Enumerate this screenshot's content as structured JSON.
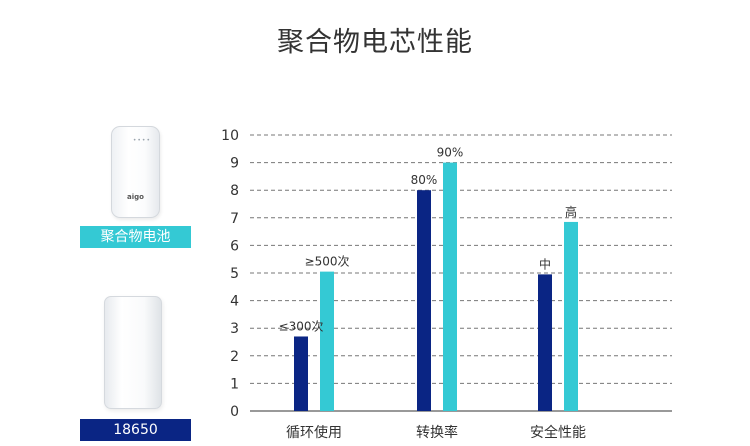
{
  "page": {
    "title": "聚合物电芯性能"
  },
  "products": [
    {
      "label": "聚合物电池",
      "logo": "aigo",
      "color": "#34c9d4"
    },
    {
      "label": "18650",
      "color": "#0a2584"
    }
  ],
  "chart_data": {
    "type": "bar",
    "categories": [
      "循环使用",
      "转换率",
      "安全性能"
    ],
    "series": [
      {
        "values": [
          2.7,
          8.0,
          4.95
        ],
        "color": "#0a2584",
        "labels": [
          "≤300次",
          "80%",
          "中"
        ]
      },
      {
        "values": [
          5.05,
          9.0,
          6.85
        ],
        "color": "#34c9d4",
        "labels": [
          "≥500次",
          "90%",
          "高"
        ]
      }
    ],
    "ylim": [
      0,
      10
    ],
    "yticks": [
      "0",
      "1",
      "2",
      "3",
      "4",
      "5",
      "6",
      "7",
      "8",
      "9",
      "10"
    ],
    "grid": true,
    "grid_style": "dashed"
  }
}
